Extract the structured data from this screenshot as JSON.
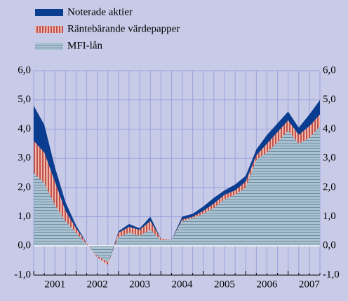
{
  "chart_data": {
    "type": "stacked-area",
    "categories": [
      null,
      null,
      null,
      null,
      null,
      null,
      null,
      null,
      null,
      null,
      null,
      null,
      null,
      null,
      null,
      null,
      null,
      null,
      null,
      null,
      null,
      null,
      null,
      null,
      null,
      null,
      null,
      null
    ],
    "year_labels": [
      "2001",
      "2002",
      "2003",
      "2004",
      "2005",
      "2006",
      "2007"
    ],
    "series": [
      {
        "name": "MFI-lån",
        "color": "#a9c1d0",
        "pattern": "horizontal-lines",
        "values": [
          2.5,
          2.15,
          1.4,
          0.85,
          0.45,
          0.05,
          -0.35,
          -0.55,
          0.3,
          0.45,
          0.35,
          0.55,
          0.2,
          0.2,
          0.85,
          0.95,
          1.1,
          1.3,
          1.6,
          1.75,
          2.0,
          2.95,
          3.2,
          3.55,
          3.95,
          3.5,
          3.7,
          4.1
        ]
      },
      {
        "name": "Räntebärande värdepapper",
        "color": "#c0504d",
        "pattern": "vertical-lines",
        "values": [
          1.1,
          1.05,
          0.8,
          0.35,
          0.15,
          0.05,
          -0.05,
          -0.1,
          0.15,
          0.2,
          0.2,
          0.3,
          0.05,
          0,
          0.05,
          0.05,
          0.1,
          0.15,
          0.15,
          0.15,
          0.2,
          0.15,
          0.3,
          0.35,
          0.35,
          0.3,
          0.4,
          0.4
        ]
      },
      {
        "name": "Noterade aktier",
        "color": "#0a3d8f",
        "pattern": "solid",
        "values": [
          1.2,
          0.95,
          0.5,
          0.3,
          0.1,
          0,
          0,
          0,
          0.05,
          0.1,
          0.05,
          0.15,
          0,
          0,
          0.1,
          0.1,
          0.15,
          0.2,
          0.15,
          0.2,
          0.2,
          0.2,
          0.3,
          0.3,
          0.3,
          0.25,
          0.4,
          0.5
        ]
      }
    ],
    "ylim": [
      -1,
      6
    ],
    "yticks": [
      {
        "value": -1,
        "label": "-1,0"
      },
      {
        "value": 0,
        "label": "0,0"
      },
      {
        "value": 1,
        "label": "1,0"
      },
      {
        "value": 2,
        "label": "2,0"
      },
      {
        "value": 3,
        "label": "3,0"
      },
      {
        "value": 4,
        "label": "4,0"
      },
      {
        "value": 5,
        "label": "5,0"
      },
      {
        "value": 6,
        "label": "6,0"
      }
    ],
    "y2lim": [
      -1,
      6
    ],
    "y2ticks": [
      {
        "value": -1,
        "label": "-1,0"
      },
      {
        "value": 0,
        "label": "0,0"
      },
      {
        "value": 1,
        "label": "1,0"
      },
      {
        "value": 2,
        "label": "2,0"
      },
      {
        "value": 3,
        "label": "3,0"
      },
      {
        "value": 4,
        "label": "4,0"
      },
      {
        "value": 5,
        "label": "5,0"
      },
      {
        "value": 6,
        "label": "6,0"
      }
    ],
    "grid": true,
    "legend": "top-left"
  }
}
